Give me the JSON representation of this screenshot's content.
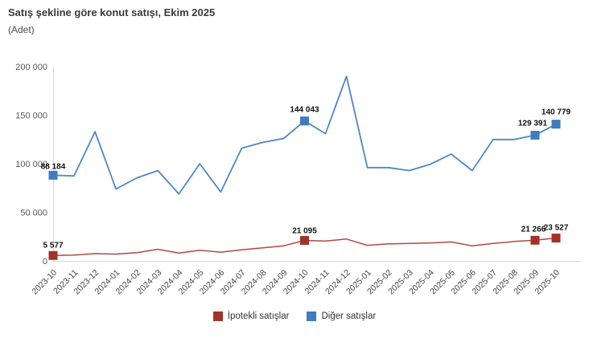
{
  "header": {
    "title": "Satış şekline göre konut satışı, Ekim 2025",
    "subtitle": "(Adet)"
  },
  "colors": {
    "axis_line": "#d6d6d6",
    "ytick_text": "#595959",
    "xtick_text": "#454545",
    "data_label_text": "#111111",
    "mortgaged_line": "#ae4a42",
    "mortgaged_marker": "#a23328",
    "other_line": "#4e87c7",
    "other_marker": "#3e7cbd"
  },
  "chart_data": {
    "type": "line",
    "title": "Satış şekline göre konut satışı, Ekim 2025",
    "subtitle": "(Adet)",
    "xlabel": "",
    "ylabel": "Adet",
    "ylim": [
      0,
      200000
    ],
    "yticks": [
      0,
      50000,
      100000,
      150000,
      200000
    ],
    "ytick_labels": [
      "0",
      "50 000",
      "100 000",
      "150 000",
      "200 000"
    ],
    "grid": false,
    "legend_position": "bottom",
    "x": [
      "2023-10",
      "2023-11",
      "2023-12",
      "2024-01",
      "2024-02",
      "2024-03",
      "2024-04",
      "2024-05",
      "2024-06",
      "2024-07",
      "2024-08",
      "2024-09",
      "2024-10",
      "2024-11",
      "2024-12",
      "2025-01",
      "2025-02",
      "2025-03",
      "2025-04",
      "2025-05",
      "2025-06",
      "2025-07",
      "2025-08",
      "2025-09",
      "2025-10"
    ],
    "series": [
      {
        "key": "mortgaged",
        "name": "İpotekli satışlar",
        "line_color": "#ae4a42",
        "marker_color": "#a23328",
        "values": [
          5577,
          6000,
          7500,
          7000,
          8500,
          12000,
          8000,
          11000,
          9000,
          11500,
          13500,
          15500,
          21095,
          20500,
          22500,
          16000,
          17500,
          18000,
          18500,
          19500,
          15500,
          18000,
          20000,
          21266,
          23527
        ],
        "labeled_points": [
          {
            "x": "2023-10",
            "label": "5 577"
          },
          {
            "x": "2024-10",
            "label": "21 095"
          },
          {
            "x": "2025-09",
            "label": "21 266"
          },
          {
            "x": "2025-10",
            "label": "23 527"
          }
        ]
      },
      {
        "key": "other",
        "name": "Diğer satışlar",
        "line_color": "#4e87c7",
        "marker_color": "#3e7cbd",
        "values": [
          88184,
          87500,
          133000,
          74000,
          85500,
          93000,
          69000,
          100000,
          71000,
          116000,
          122000,
          126000,
          144043,
          131000,
          190000,
          96000,
          96000,
          93000,
          99500,
          110000,
          93000,
          125000,
          125000,
          129391,
          140779
        ],
        "labeled_points": [
          {
            "x": "2023-10",
            "label": "88 184"
          },
          {
            "x": "2024-10",
            "label": "144 043"
          },
          {
            "x": "2025-09",
            "label": "129 391"
          },
          {
            "x": "2025-10",
            "label": "140 779"
          }
        ]
      }
    ]
  }
}
